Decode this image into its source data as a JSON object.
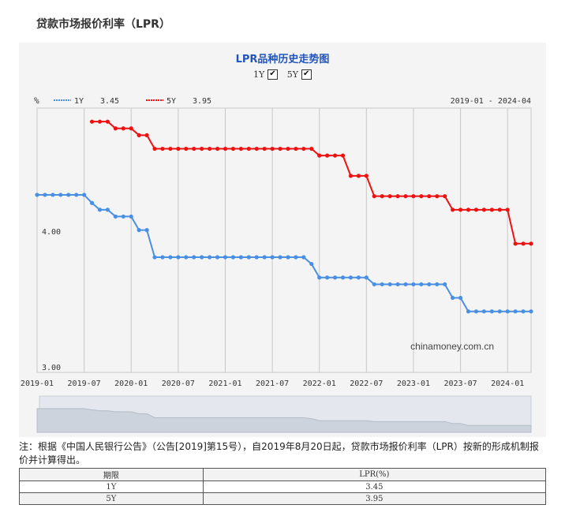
{
  "page_title": "贷款市场报价利率（LPR）",
  "chart_data": {
    "type": "line",
    "title": "LPR品种历史走势图",
    "y_unit": "%",
    "date_range": "2019-01 - 2024-04",
    "watermark": "chinamoney.com.cn",
    "ylim": [
      3.0,
      4.95
    ],
    "y_ticks": [
      {
        "value": 4.0,
        "label": "4.00"
      },
      {
        "value": 3.0,
        "label": "3.00"
      }
    ],
    "x_ticks": [
      "2019-01",
      "2019-07",
      "2020-01",
      "2020-07",
      "2021-01",
      "2021-07",
      "2022-01",
      "2022-07",
      "2023-01",
      "2023-07",
      "2024-01"
    ],
    "series": [
      {
        "name": "1Y",
        "last": "3.45",
        "color": "#4a90e2",
        "checked": true,
        "x": [
          "2019-01",
          "2019-02",
          "2019-03",
          "2019-04",
          "2019-05",
          "2019-06",
          "2019-07",
          "2019-08",
          "2019-09",
          "2019-10",
          "2019-11",
          "2019-12",
          "2020-01",
          "2020-02",
          "2020-03",
          "2020-04",
          "2020-05",
          "2020-06",
          "2020-07",
          "2020-08",
          "2020-09",
          "2020-10",
          "2020-11",
          "2020-12",
          "2021-01",
          "2021-02",
          "2021-03",
          "2021-04",
          "2021-05",
          "2021-06",
          "2021-07",
          "2021-08",
          "2021-09",
          "2021-10",
          "2021-11",
          "2021-12",
          "2022-01",
          "2022-02",
          "2022-03",
          "2022-04",
          "2022-05",
          "2022-06",
          "2022-07",
          "2022-08",
          "2022-09",
          "2022-10",
          "2022-11",
          "2022-12",
          "2023-01",
          "2023-02",
          "2023-03",
          "2023-04",
          "2023-05",
          "2023-06",
          "2023-07",
          "2023-08",
          "2023-09",
          "2023-10",
          "2023-11",
          "2023-12",
          "2024-01",
          "2024-02",
          "2024-03",
          "2024-04"
        ],
        "values": [
          4.31,
          4.31,
          4.31,
          4.31,
          4.31,
          4.31,
          4.31,
          4.25,
          4.2,
          4.2,
          4.15,
          4.15,
          4.15,
          4.05,
          4.05,
          3.85,
          3.85,
          3.85,
          3.85,
          3.85,
          3.85,
          3.85,
          3.85,
          3.85,
          3.85,
          3.85,
          3.85,
          3.85,
          3.85,
          3.85,
          3.85,
          3.85,
          3.85,
          3.85,
          3.85,
          3.8,
          3.7,
          3.7,
          3.7,
          3.7,
          3.7,
          3.7,
          3.7,
          3.65,
          3.65,
          3.65,
          3.65,
          3.65,
          3.65,
          3.65,
          3.65,
          3.65,
          3.65,
          3.55,
          3.55,
          3.45,
          3.45,
          3.45,
          3.45,
          3.45,
          3.45,
          3.45,
          3.45,
          3.45
        ]
      },
      {
        "name": "5Y",
        "last": "3.95",
        "color": "#ee1111",
        "checked": true,
        "x": [
          "2019-08",
          "2019-09",
          "2019-10",
          "2019-11",
          "2019-12",
          "2020-01",
          "2020-02",
          "2020-03",
          "2020-04",
          "2020-05",
          "2020-06",
          "2020-07",
          "2020-08",
          "2020-09",
          "2020-10",
          "2020-11",
          "2020-12",
          "2021-01",
          "2021-02",
          "2021-03",
          "2021-04",
          "2021-05",
          "2021-06",
          "2021-07",
          "2021-08",
          "2021-09",
          "2021-10",
          "2021-11",
          "2021-12",
          "2022-01",
          "2022-02",
          "2022-03",
          "2022-04",
          "2022-05",
          "2022-06",
          "2022-07",
          "2022-08",
          "2022-09",
          "2022-10",
          "2022-11",
          "2022-12",
          "2023-01",
          "2023-02",
          "2023-03",
          "2023-04",
          "2023-05",
          "2023-06",
          "2023-07",
          "2023-08",
          "2023-09",
          "2023-10",
          "2023-11",
          "2023-12",
          "2024-01",
          "2024-02",
          "2024-03",
          "2024-04"
        ],
        "values": [
          4.85,
          4.85,
          4.85,
          4.8,
          4.8,
          4.8,
          4.75,
          4.75,
          4.65,
          4.65,
          4.65,
          4.65,
          4.65,
          4.65,
          4.65,
          4.65,
          4.65,
          4.65,
          4.65,
          4.65,
          4.65,
          4.65,
          4.65,
          4.65,
          4.65,
          4.65,
          4.65,
          4.65,
          4.65,
          4.6,
          4.6,
          4.6,
          4.6,
          4.45,
          4.45,
          4.45,
          4.3,
          4.3,
          4.3,
          4.3,
          4.3,
          4.3,
          4.3,
          4.3,
          4.3,
          4.3,
          4.2,
          4.2,
          4.2,
          4.2,
          4.2,
          4.2,
          4.2,
          4.2,
          3.95,
          3.95,
          3.95
        ]
      }
    ]
  },
  "note": "注：根据《中国人民银行公告》（公告[2019]第15号），自2019年8月20日起，贷款市场报价利率（LPR）按新的形成机制报价并计算得出。",
  "table": {
    "headers": [
      "期限",
      "LPR(%)"
    ],
    "rows": [
      [
        "1Y",
        "3.45"
      ],
      [
        "5Y",
        "3.95"
      ]
    ]
  }
}
